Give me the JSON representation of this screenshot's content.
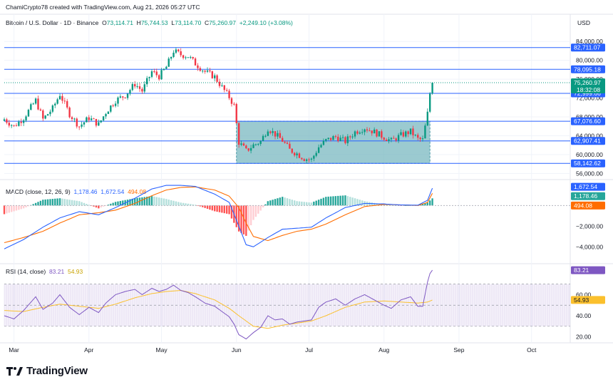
{
  "header": {
    "credit": "ChamiCrypto78 created with TradingView.com, Aug 21, 2026 05:27 UTC",
    "symbol": "Bitcoin / U.S. Dollar · 1D · Binance",
    "open_label": "O",
    "open": "73,114.71",
    "high_label": "H",
    "high": "75,744.53",
    "low_label": "L",
    "low": "73,114.70",
    "close_label": "C",
    "close": "75,260.97",
    "change": "+2,249.10 (+3.08%)",
    "currency": "USD"
  },
  "macd": {
    "title": "MACD (close, 12, 26, 9)",
    "v1": "1,178.46",
    "v2": "1,672.54",
    "v3": "494.08"
  },
  "rsi": {
    "title": "RSI (14, close)",
    "v1": "83.21",
    "v2": "54.93"
  },
  "brand": "TradingView",
  "colors": {
    "up": "#089981",
    "down": "#f23645",
    "blue": "#2962ff",
    "macd": "#2962ff",
    "signal": "#ff6d00",
    "rsi": "#7e57c2",
    "rsi_ma": "#fbc02d",
    "box": "#7ab8c0"
  },
  "chart_data": [
    {
      "type": "candlestick",
      "title": "Bitcoin / U.S. Dollar · 1D · Binance",
      "x_labels": [
        "Mar",
        "Apr",
        "May",
        "Jun",
        "Jul",
        "Aug",
        "Sep",
        "Oct"
      ],
      "y_ticks": [
        56000,
        60000,
        64000,
        68000,
        72000,
        76000,
        80000,
        84000
      ],
      "y_tick_labels": [
        "56,000.00",
        "60,000.00",
        "64,000.00",
        "68,000.00",
        "72,000.00",
        "76,000.00",
        "80,000.00",
        "84,000.00"
      ],
      "ylim": [
        55000,
        86000
      ],
      "levels": [
        {
          "value": 82711.07,
          "label": "82,711.07"
        },
        {
          "value": 78095.18,
          "label": "78,095.18"
        },
        {
          "value": 72999.66,
          "label": "72,999.66"
        },
        {
          "value": 67076.6,
          "label": "67,076.60"
        },
        {
          "value": 62907.41,
          "label": "62,907.41"
        },
        {
          "value": 58142.62,
          "label": "58,142.62"
        }
      ],
      "current_price": {
        "value": 75260.97,
        "label": "75,260.97",
        "countdown": "18:32:08"
      },
      "range_box": {
        "from": "2026-06-01",
        "to": "2026-08-20",
        "low": 58142.62,
        "high": 67076.6
      },
      "close_anchors": [
        [
          "2026-02-25",
          67500
        ],
        [
          "2026-03-01",
          66000
        ],
        [
          "2026-03-05",
          67800
        ],
        [
          "2026-03-10",
          71500
        ],
        [
          "2026-03-13",
          67500
        ],
        [
          "2026-03-17",
          69800
        ],
        [
          "2026-03-20",
          72800
        ],
        [
          "2026-03-24",
          68600
        ],
        [
          "2026-03-28",
          66000
        ],
        [
          "2026-04-01",
          67800
        ],
        [
          "2026-04-05",
          66400
        ],
        [
          "2026-04-08",
          69000
        ],
        [
          "2026-04-12",
          71500
        ],
        [
          "2026-04-16",
          72600
        ],
        [
          "2026-04-20",
          75000
        ],
        [
          "2026-04-23",
          73500
        ],
        [
          "2026-04-27",
          77600
        ],
        [
          "2026-04-30",
          76600
        ],
        [
          "2026-05-03",
          78600
        ],
        [
          "2026-05-06",
          82000
        ],
        [
          "2026-05-09",
          81200
        ],
        [
          "2026-05-12",
          80900
        ],
        [
          "2026-05-15",
          79300
        ],
        [
          "2026-05-19",
          77600
        ],
        [
          "2026-05-23",
          76500
        ],
        [
          "2026-05-26",
          74300
        ],
        [
          "2026-05-29",
          72200
        ],
        [
          "2026-05-31",
          70400
        ],
        [
          "2026-06-02",
          62600
        ],
        [
          "2026-06-05",
          60800
        ],
        [
          "2026-06-08",
          62000
        ],
        [
          "2026-06-11",
          62800
        ],
        [
          "2026-06-14",
          65600
        ],
        [
          "2026-06-17",
          64300
        ],
        [
          "2026-06-20",
          63000
        ],
        [
          "2026-06-23",
          61000
        ],
        [
          "2026-06-26",
          60200
        ],
        [
          "2026-06-29",
          59200
        ],
        [
          "2026-07-02",
          58900
        ],
        [
          "2026-07-05",
          61600
        ],
        [
          "2026-07-08",
          63000
        ],
        [
          "2026-07-12",
          63800
        ],
        [
          "2026-07-16",
          62800
        ],
        [
          "2026-07-20",
          64800
        ],
        [
          "2026-07-24",
          65700
        ],
        [
          "2026-07-28",
          64800
        ],
        [
          "2026-08-01",
          63700
        ],
        [
          "2026-08-04",
          62900
        ],
        [
          "2026-08-08",
          64100
        ],
        [
          "2026-08-12",
          64900
        ],
        [
          "2026-08-15",
          63300
        ],
        [
          "2026-08-17",
          63100
        ],
        [
          "2026-08-19",
          68700
        ],
        [
          "2026-08-20",
          73011
        ],
        [
          "2026-08-21",
          75261
        ]
      ]
    },
    {
      "type": "line",
      "title": "MACD (close, 12, 26, 9)",
      "y_ticks": [
        -4000,
        -2000
      ],
      "y_tick_labels": [
        "−4,000.00",
        "−2,000.00"
      ],
      "ylim": [
        -5500,
        2300
      ],
      "values": {
        "macd": 1672.54,
        "signal": 1178.46,
        "histogram": 494.08
      },
      "series": [
        {
          "name": "MACD",
          "anchors": [
            [
              "2026-02-25",
              -4200
            ],
            [
              "2026-03-05",
              -3300
            ],
            [
              "2026-03-13",
              -2100
            ],
            [
              "2026-03-20",
              -1200
            ],
            [
              "2026-03-28",
              -600
            ],
            [
              "2026-04-05",
              -900
            ],
            [
              "2026-04-12",
              -200
            ],
            [
              "2026-04-20",
              700
            ],
            [
              "2026-04-27",
              1600
            ],
            [
              "2026-05-03",
              1950
            ],
            [
              "2026-05-09",
              1950
            ],
            [
              "2026-05-15",
              1850
            ],
            [
              "2026-05-23",
              1100
            ],
            [
              "2026-05-29",
              300
            ],
            [
              "2026-06-02",
              -2000
            ],
            [
              "2026-06-05",
              -3800
            ],
            [
              "2026-06-08",
              -4000
            ],
            [
              "2026-06-14",
              -3100
            ],
            [
              "2026-06-20",
              -2300
            ],
            [
              "2026-06-26",
              -2200
            ],
            [
              "2026-07-02",
              -2100
            ],
            [
              "2026-07-08",
              -1200
            ],
            [
              "2026-07-16",
              -200
            ],
            [
              "2026-07-24",
              200
            ],
            [
              "2026-08-01",
              150
            ],
            [
              "2026-08-08",
              50
            ],
            [
              "2026-08-15",
              30
            ],
            [
              "2026-08-19",
              500
            ],
            [
              "2026-08-21",
              1672.54
            ]
          ]
        },
        {
          "name": "Signal",
          "anchors": [
            [
              "2026-02-25",
              -3600
            ],
            [
              "2026-03-05",
              -3100
            ],
            [
              "2026-03-13",
              -2500
            ],
            [
              "2026-03-20",
              -1700
            ],
            [
              "2026-03-28",
              -900
            ],
            [
              "2026-04-05",
              -700
            ],
            [
              "2026-04-12",
              -450
            ],
            [
              "2026-04-20",
              200
            ],
            [
              "2026-04-27",
              950
            ],
            [
              "2026-05-03",
              1500
            ],
            [
              "2026-05-09",
              1750
            ],
            [
              "2026-05-15",
              1800
            ],
            [
              "2026-05-23",
              1500
            ],
            [
              "2026-05-29",
              900
            ],
            [
              "2026-06-02",
              -200
            ],
            [
              "2026-06-05",
              -1700
            ],
            [
              "2026-06-08",
              -3000
            ],
            [
              "2026-06-14",
              -3400
            ],
            [
              "2026-06-20",
              -2900
            ],
            [
              "2026-06-26",
              -2500
            ],
            [
              "2026-07-02",
              -2300
            ],
            [
              "2026-07-08",
              -1800
            ],
            [
              "2026-07-16",
              -900
            ],
            [
              "2026-07-24",
              -100
            ],
            [
              "2026-08-01",
              100
            ],
            [
              "2026-08-08",
              60
            ],
            [
              "2026-08-15",
              0
            ],
            [
              "2026-08-19",
              300
            ],
            [
              "2026-08-21",
              1178.46
            ]
          ]
        }
      ]
    },
    {
      "type": "line",
      "title": "RSI (14, close)",
      "y_ticks": [
        20,
        40,
        60
      ],
      "y_tick_labels": [
        "20.00",
        "40.00",
        "60.00"
      ],
      "ylim": [
        15,
        88
      ],
      "bands": [
        30,
        50,
        70
      ],
      "values": {
        "rsi": 83.21,
        "ma": 54.93
      },
      "series": [
        {
          "name": "RSI",
          "anchors": [
            [
              "2026-02-25",
              40
            ],
            [
              "2026-03-01",
              37
            ],
            [
              "2026-03-05",
              45
            ],
            [
              "2026-03-10",
              58
            ],
            [
              "2026-03-13",
              46
            ],
            [
              "2026-03-17",
              52
            ],
            [
              "2026-03-20",
              60
            ],
            [
              "2026-03-24",
              48
            ],
            [
              "2026-03-28",
              41
            ],
            [
              "2026-04-01",
              48
            ],
            [
              "2026-04-05",
              43
            ],
            [
              "2026-04-08",
              52
            ],
            [
              "2026-04-12",
              60
            ],
            [
              "2026-04-16",
              63
            ],
            [
              "2026-04-20",
              65
            ],
            [
              "2026-04-23",
              60
            ],
            [
              "2026-04-27",
              66
            ],
            [
              "2026-04-30",
              63
            ],
            [
              "2026-05-03",
              65
            ],
            [
              "2026-05-06",
              69
            ],
            [
              "2026-05-09",
              64
            ],
            [
              "2026-05-12",
              62
            ],
            [
              "2026-05-15",
              58
            ],
            [
              "2026-05-19",
              52
            ],
            [
              "2026-05-23",
              49
            ],
            [
              "2026-05-26",
              44
            ],
            [
              "2026-05-29",
              39
            ],
            [
              "2026-05-31",
              32
            ],
            [
              "2026-06-02",
              22
            ],
            [
              "2026-06-05",
              18
            ],
            [
              "2026-06-08",
              24
            ],
            [
              "2026-06-11",
              29
            ],
            [
              "2026-06-14",
              40
            ],
            [
              "2026-06-17",
              36
            ],
            [
              "2026-06-20",
              37
            ],
            [
              "2026-06-23",
              32
            ],
            [
              "2026-06-26",
              34
            ],
            [
              "2026-06-29",
              35
            ],
            [
              "2026-07-02",
              36
            ],
            [
              "2026-07-05",
              48
            ],
            [
              "2026-07-08",
              53
            ],
            [
              "2026-07-12",
              56
            ],
            [
              "2026-07-16",
              50
            ],
            [
              "2026-07-20",
              56
            ],
            [
              "2026-07-24",
              60
            ],
            [
              "2026-07-28",
              55
            ],
            [
              "2026-08-01",
              50
            ],
            [
              "2026-08-04",
              47
            ],
            [
              "2026-08-08",
              55
            ],
            [
              "2026-08-12",
              58
            ],
            [
              "2026-08-15",
              49
            ],
            [
              "2026-08-17",
              49
            ],
            [
              "2026-08-19",
              72
            ],
            [
              "2026-08-20",
              80
            ],
            [
              "2026-08-21",
              83.21
            ]
          ]
        },
        {
          "name": "RSI MA",
          "anchors": [
            [
              "2026-02-25",
              45
            ],
            [
              "2026-03-05",
              44
            ],
            [
              "2026-03-13",
              48
            ],
            [
              "2026-03-20",
              51
            ],
            [
              "2026-03-28",
              49
            ],
            [
              "2026-04-05",
              47
            ],
            [
              "2026-04-12",
              51
            ],
            [
              "2026-04-20",
              57
            ],
            [
              "2026-04-27",
              61
            ],
            [
              "2026-05-03",
              63
            ],
            [
              "2026-05-09",
              64
            ],
            [
              "2026-05-15",
              61
            ],
            [
              "2026-05-23",
              55
            ],
            [
              "2026-05-29",
              47
            ],
            [
              "2026-06-02",
              40
            ],
            [
              "2026-06-08",
              30
            ],
            [
              "2026-06-14",
              28
            ],
            [
              "2026-06-20",
              31
            ],
            [
              "2026-06-26",
              33
            ],
            [
              "2026-07-02",
              35
            ],
            [
              "2026-07-08",
              40
            ],
            [
              "2026-07-16",
              48
            ],
            [
              "2026-07-24",
              53
            ],
            [
              "2026-08-01",
              54
            ],
            [
              "2026-08-08",
              53
            ],
            [
              "2026-08-15",
              52
            ],
            [
              "2026-08-19",
              53
            ],
            [
              "2026-08-21",
              54.93
            ]
          ]
        }
      ]
    }
  ]
}
